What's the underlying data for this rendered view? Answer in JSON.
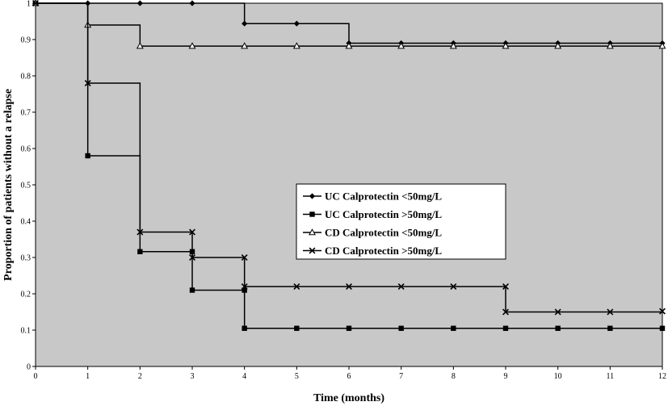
{
  "chart_data": {
    "type": "line",
    "step": true,
    "xlabel": "Time (months)",
    "ylabel": "Proportion of patients without a relapse",
    "xlim": [
      0,
      12
    ],
    "ylim": [
      0,
      1
    ],
    "xticks": [
      "0",
      "1",
      "2",
      "3",
      "4",
      "5",
      "6",
      "7",
      "8",
      "9",
      "10",
      "11",
      "12"
    ],
    "yticks": [
      "0",
      "0.1",
      "0.2",
      "0.3",
      "0.4",
      "0.5",
      "0.6",
      "0.7",
      "0.8",
      "0.9",
      "1"
    ],
    "grid": false,
    "plot_background": "#c8c8c8",
    "legend_position": "center-right",
    "series": [
      {
        "name": "UC Calprotectin <50mg/L",
        "marker": "diamond",
        "x": [
          0,
          1,
          2,
          3,
          4,
          5,
          6,
          7,
          8,
          9,
          10,
          11,
          12
        ],
        "y": [
          1,
          1,
          1,
          1,
          0.944,
          0.944,
          0.89,
          0.89,
          0.89,
          0.89,
          0.89,
          0.89,
          0.89
        ]
      },
      {
        "name": "UC Calprotectin >50mg/L",
        "marker": "square",
        "x": [
          0,
          1,
          2,
          3,
          3,
          4,
          4,
          5,
          6,
          7,
          8,
          9,
          10,
          11,
          12
        ],
        "y": [
          1,
          0.58,
          0.316,
          0.316,
          0.21,
          0.21,
          0.105,
          0.105,
          0.105,
          0.105,
          0.105,
          0.105,
          0.105,
          0.105,
          0.105
        ]
      },
      {
        "name": "CD Calprotectin <50mg/L",
        "marker": "triangle",
        "x": [
          0,
          1,
          2,
          3,
          4,
          5,
          6,
          7,
          8,
          9,
          10,
          11,
          12
        ],
        "y": [
          1,
          0.94,
          0.882,
          0.882,
          0.882,
          0.882,
          0.882,
          0.882,
          0.882,
          0.882,
          0.882,
          0.882,
          0.882
        ]
      },
      {
        "name": "CD Calprotectin >50mg/L",
        "marker": "x",
        "x": [
          0,
          1,
          2,
          3,
          3,
          4,
          4,
          5,
          6,
          7,
          8,
          9,
          9,
          10,
          11,
          12
        ],
        "y": [
          1,
          0.78,
          0.37,
          0.37,
          0.3,
          0.3,
          0.22,
          0.22,
          0.22,
          0.22,
          0.22,
          0.22,
          0.15,
          0.15,
          0.15,
          0.152
        ]
      }
    ]
  }
}
